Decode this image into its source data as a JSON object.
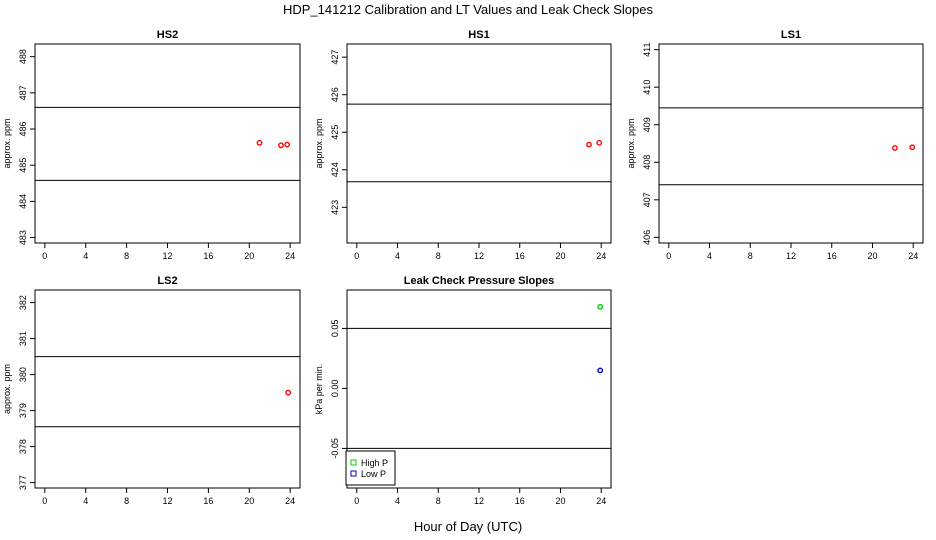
{
  "figure": {
    "title": "HDP_141212  Calibration and LT Values and Leak Check Slopes",
    "common_xlabel": "Hour of Day (UTC)"
  },
  "colors": {
    "calibration_points": "#ff0000",
    "high_p": "#00cc00",
    "low_p": "#0000cc",
    "axis": "#000000"
  },
  "chart_data": [
    {
      "id": "hs2",
      "type": "scatter",
      "title": "HS2",
      "ylabel": "approx. ppm",
      "xlim": [
        -0.96,
        24.96
      ],
      "ylim": [
        482.85,
        488.35
      ],
      "xticks": [
        0,
        4,
        8,
        12,
        16,
        20,
        24
      ],
      "yticks": [
        483,
        484,
        485,
        486,
        487,
        488
      ],
      "hlines": [
        484.58,
        486.6
      ],
      "series": [
        {
          "color": "#ff0000",
          "marker": "circle",
          "x": [
            21.0,
            23.1,
            23.7
          ],
          "y": [
            485.62,
            485.55,
            485.57
          ]
        }
      ]
    },
    {
      "id": "hs1",
      "type": "scatter",
      "title": "HS1",
      "ylabel": "approx. ppm",
      "xlim": [
        -0.96,
        24.96
      ],
      "ylim": [
        422.05,
        427.35
      ],
      "xticks": [
        0,
        4,
        8,
        12,
        16,
        20,
        24
      ],
      "yticks": [
        423,
        424,
        425,
        426,
        427
      ],
      "hlines": [
        423.68,
        425.75
      ],
      "series": [
        {
          "color": "#ff0000",
          "marker": "circle",
          "x": [
            22.8,
            23.8
          ],
          "y": [
            424.67,
            424.72
          ]
        }
      ]
    },
    {
      "id": "ls1",
      "type": "scatter",
      "title": "LS1",
      "ylabel": "approx. ppm",
      "xlim": [
        -0.96,
        24.96
      ],
      "ylim": [
        405.85,
        411.15
      ],
      "xticks": [
        0,
        4,
        8,
        12,
        16,
        20,
        24
      ],
      "yticks": [
        406,
        407,
        408,
        409,
        410,
        411
      ],
      "hlines": [
        407.4,
        409.45
      ],
      "series": [
        {
          "color": "#ff0000",
          "marker": "circle",
          "x": [
            22.2,
            23.9
          ],
          "y": [
            408.38,
            408.4
          ]
        }
      ]
    },
    {
      "id": "ls2",
      "type": "scatter",
      "title": "LS2",
      "ylabel": "approx. ppm",
      "xlim": [
        -0.96,
        24.96
      ],
      "ylim": [
        376.85,
        382.35
      ],
      "xticks": [
        0,
        4,
        8,
        12,
        16,
        20,
        24
      ],
      "yticks": [
        377,
        378,
        379,
        380,
        381,
        382
      ],
      "hlines": [
        378.55,
        380.5
      ],
      "series": [
        {
          "color": "#ff0000",
          "marker": "circle",
          "x": [
            23.8
          ],
          "y": [
            379.5
          ]
        }
      ]
    },
    {
      "id": "leak",
      "type": "scatter",
      "title": "Leak Check Pressure Slopes",
      "ylabel": "kPa per min.",
      "xlim": [
        -0.96,
        24.96
      ],
      "ylim": [
        -0.083,
        0.082
      ],
      "xticks": [
        0,
        4,
        8,
        12,
        16,
        20,
        24
      ],
      "yticks": [
        -0.05,
        0.0,
        0.05
      ],
      "ytick_labels": [
        "-0.05",
        "0.00",
        "0.05"
      ],
      "hlines": [
        -0.05,
        0.05
      ],
      "legend": {
        "placement": "bottom-left",
        "entries": [
          "High P",
          "Low P"
        ]
      },
      "series": [
        {
          "name": "High P",
          "color": "#00cc00",
          "marker": "circle",
          "x": [
            23.9
          ],
          "y": [
            0.068
          ]
        },
        {
          "name": "Low P",
          "color": "#0000cc",
          "marker": "circle",
          "x": [
            23.9
          ],
          "y": [
            0.015
          ]
        }
      ]
    }
  ]
}
